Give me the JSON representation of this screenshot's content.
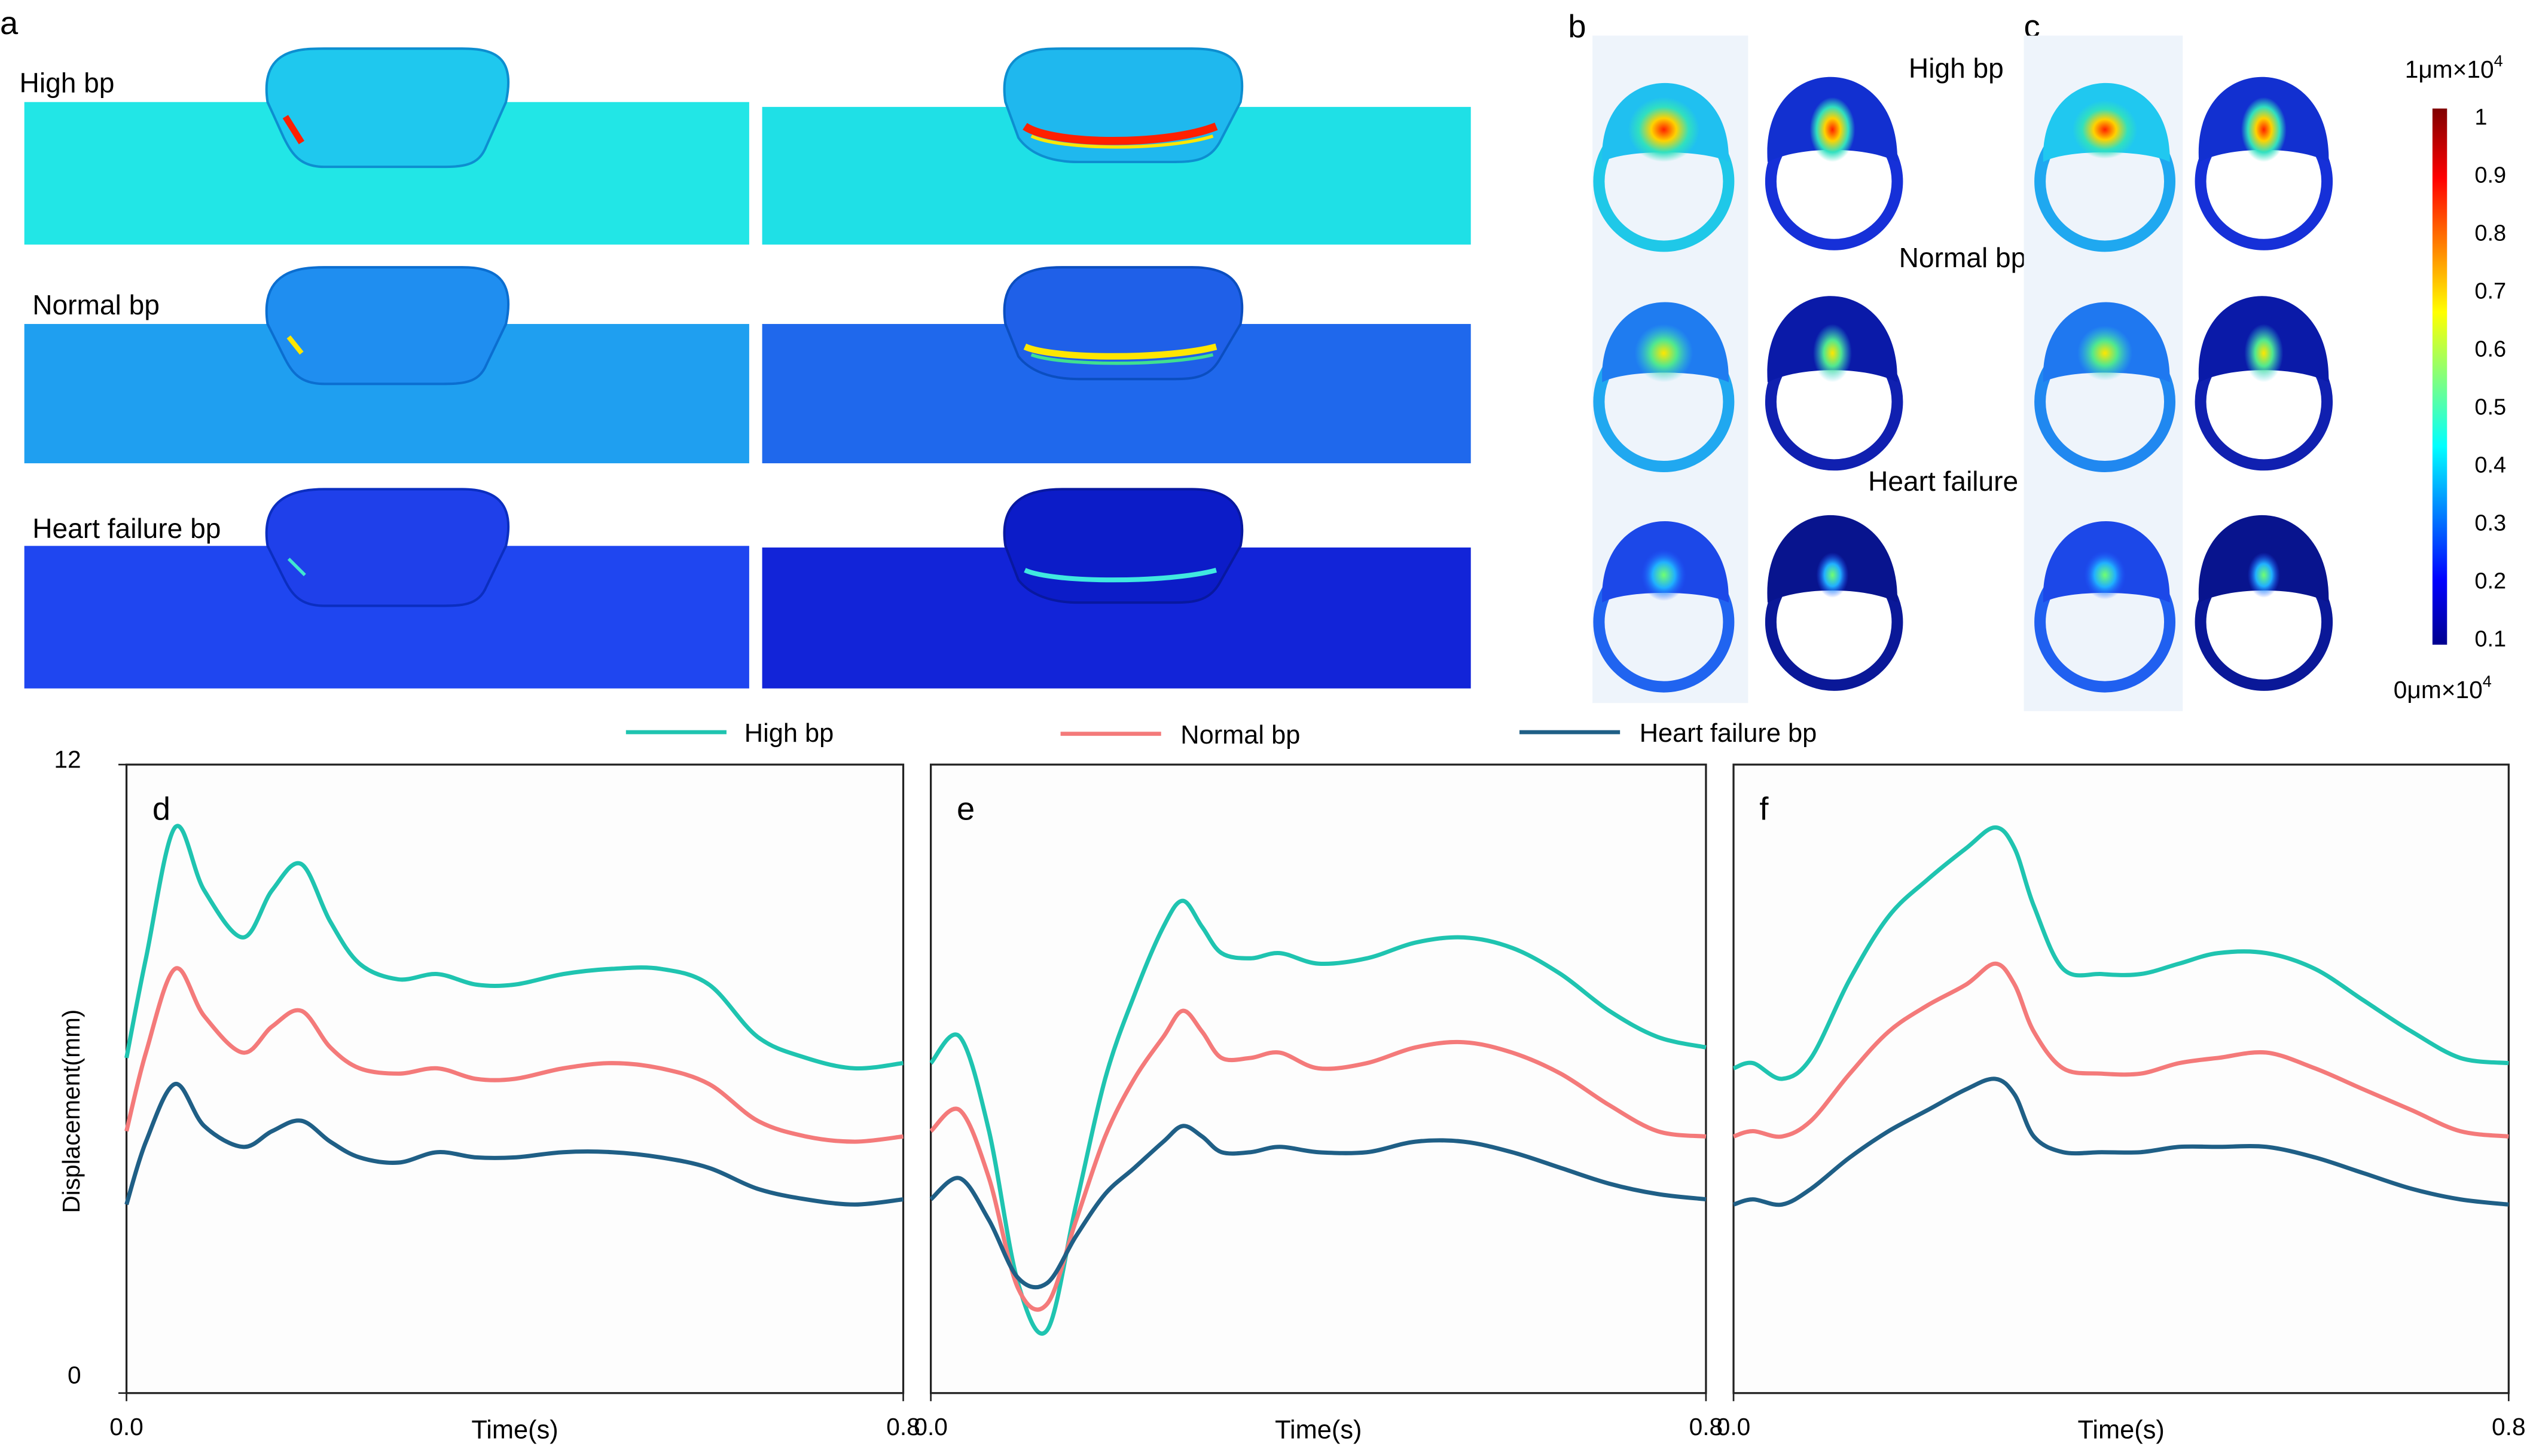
{
  "panel_labels": {
    "a": "a",
    "b": "b",
    "c": "c",
    "d": "d",
    "e": "e",
    "f": "f"
  },
  "bp_labels": {
    "high": "High bp",
    "normal": "Normal bp",
    "heart_failure": "Heart failure bp"
  },
  "colorbar": {
    "top_label": "1μm×10",
    "top_sup": "4",
    "bottom_label": "0μm×10",
    "bottom_sup": "4",
    "ticks": [
      "1",
      "0.9",
      "0.8",
      "0.7",
      "0.6",
      "0.5",
      "0.4",
      "0.3",
      "0.2",
      "0.1"
    ]
  },
  "colors": {
    "high": "#1fc4b0",
    "normal": "#f47a7a",
    "heart_failure": "#1f5f86"
  },
  "chart_data": [
    {
      "id": "d",
      "type": "line",
      "title": "d",
      "xlabel": "Time(s)",
      "ylabel": "Displacement(mm)",
      "xlim": [
        0,
        0.8
      ],
      "ylim": [
        0,
        12
      ],
      "x_ticks": [
        "0.0",
        "0.8"
      ],
      "y_ticks": [
        "0",
        "12"
      ],
      "legend": "top",
      "series": [
        {
          "name": "High bp",
          "color": "#1fc4b0",
          "x": [
            0,
            0.02,
            0.05,
            0.08,
            0.12,
            0.15,
            0.18,
            0.21,
            0.24,
            0.28,
            0.32,
            0.36,
            0.4,
            0.45,
            0.5,
            0.55,
            0.6,
            0.65,
            0.7,
            0.75,
            0.8
          ],
          "y": [
            6.4,
            8.3,
            10.8,
            9.6,
            8.7,
            9.6,
            10.1,
            9.0,
            8.2,
            7.9,
            8.0,
            7.8,
            7.8,
            8.0,
            8.1,
            8.1,
            7.8,
            6.8,
            6.4,
            6.2,
            6.3
          ]
        },
        {
          "name": "Normal bp",
          "color": "#f47a7a",
          "x": [
            0,
            0.02,
            0.05,
            0.08,
            0.12,
            0.15,
            0.18,
            0.21,
            0.24,
            0.28,
            0.32,
            0.36,
            0.4,
            0.45,
            0.5,
            0.55,
            0.6,
            0.65,
            0.7,
            0.75,
            0.8
          ],
          "y": [
            5.0,
            6.5,
            8.1,
            7.2,
            6.5,
            7.0,
            7.3,
            6.6,
            6.2,
            6.1,
            6.2,
            6.0,
            6.0,
            6.2,
            6.3,
            6.2,
            5.9,
            5.2,
            4.9,
            4.8,
            4.9
          ]
        },
        {
          "name": "Heart failure bp",
          "color": "#1f5f86",
          "x": [
            0,
            0.02,
            0.05,
            0.08,
            0.12,
            0.15,
            0.18,
            0.21,
            0.24,
            0.28,
            0.32,
            0.36,
            0.4,
            0.45,
            0.5,
            0.55,
            0.6,
            0.65,
            0.7,
            0.75,
            0.8
          ],
          "y": [
            3.6,
            4.8,
            5.9,
            5.1,
            4.7,
            5.0,
            5.2,
            4.8,
            4.5,
            4.4,
            4.6,
            4.5,
            4.5,
            4.6,
            4.6,
            4.5,
            4.3,
            3.9,
            3.7,
            3.6,
            3.7
          ]
        }
      ]
    },
    {
      "id": "e",
      "type": "line",
      "title": "e",
      "xlabel": "Time(s)",
      "ylabel": "",
      "xlim": [
        0,
        0.8
      ],
      "ylim": [
        0,
        12
      ],
      "x_ticks": [
        "0.0",
        "0.8"
      ],
      "y_ticks": [],
      "series": [
        {
          "name": "High bp",
          "color": "#1fc4b0",
          "x": [
            0,
            0.03,
            0.06,
            0.09,
            0.12,
            0.15,
            0.18,
            0.21,
            0.24,
            0.26,
            0.28,
            0.3,
            0.33,
            0.36,
            0.4,
            0.45,
            0.5,
            0.55,
            0.6,
            0.65,
            0.7,
            0.75,
            0.8
          ],
          "y": [
            6.3,
            6.8,
            5.0,
            2.1,
            1.2,
            3.6,
            6.0,
            7.6,
            8.9,
            9.4,
            8.9,
            8.4,
            8.3,
            8.4,
            8.2,
            8.3,
            8.6,
            8.7,
            8.5,
            8.0,
            7.3,
            6.8,
            6.6
          ]
        },
        {
          "name": "Normal bp",
          "color": "#f47a7a",
          "x": [
            0,
            0.03,
            0.06,
            0.09,
            0.12,
            0.15,
            0.18,
            0.21,
            0.24,
            0.26,
            0.28,
            0.3,
            0.33,
            0.36,
            0.4,
            0.45,
            0.5,
            0.55,
            0.6,
            0.65,
            0.7,
            0.75,
            0.8
          ],
          "y": [
            5.0,
            5.4,
            4.1,
            2.0,
            1.7,
            3.3,
            4.9,
            6.0,
            6.8,
            7.3,
            6.9,
            6.4,
            6.4,
            6.5,
            6.2,
            6.3,
            6.6,
            6.7,
            6.5,
            6.1,
            5.5,
            5.0,
            4.9
          ]
        },
        {
          "name": "Heart failure bp",
          "color": "#1f5f86",
          "x": [
            0,
            0.03,
            0.06,
            0.09,
            0.12,
            0.15,
            0.18,
            0.21,
            0.24,
            0.26,
            0.28,
            0.3,
            0.33,
            0.36,
            0.4,
            0.45,
            0.5,
            0.55,
            0.6,
            0.65,
            0.7,
            0.75,
            0.8
          ],
          "y": [
            3.7,
            4.1,
            3.3,
            2.2,
            2.1,
            3.0,
            3.8,
            4.3,
            4.8,
            5.1,
            4.9,
            4.6,
            4.6,
            4.7,
            4.6,
            4.6,
            4.8,
            4.8,
            4.6,
            4.3,
            4.0,
            3.8,
            3.7
          ]
        }
      ]
    },
    {
      "id": "f",
      "type": "line",
      "title": "f",
      "xlabel": "Time(s)",
      "ylabel": "",
      "xlim": [
        0,
        0.8
      ],
      "ylim": [
        0,
        12
      ],
      "x_ticks": [
        "0.0",
        "0.8"
      ],
      "y_ticks": [],
      "series": [
        {
          "name": "High bp",
          "color": "#1fc4b0",
          "x": [
            0,
            0.02,
            0.05,
            0.08,
            0.12,
            0.16,
            0.2,
            0.24,
            0.27,
            0.29,
            0.31,
            0.34,
            0.38,
            0.42,
            0.46,
            0.5,
            0.55,
            0.6,
            0.65,
            0.7,
            0.75,
            0.8
          ],
          "y": [
            6.2,
            6.3,
            6.0,
            6.4,
            7.9,
            9.1,
            9.8,
            10.4,
            10.8,
            10.4,
            9.3,
            8.1,
            8.0,
            8.0,
            8.2,
            8.4,
            8.4,
            8.1,
            7.5,
            6.9,
            6.4,
            6.3
          ]
        },
        {
          "name": "Normal bp",
          "color": "#f47a7a",
          "x": [
            0,
            0.02,
            0.05,
            0.08,
            0.12,
            0.16,
            0.2,
            0.24,
            0.27,
            0.29,
            0.31,
            0.34,
            0.38,
            0.42,
            0.46,
            0.5,
            0.55,
            0.6,
            0.65,
            0.7,
            0.75,
            0.8
          ],
          "y": [
            4.9,
            5.0,
            4.9,
            5.2,
            6.1,
            6.9,
            7.4,
            7.8,
            8.2,
            7.8,
            6.9,
            6.2,
            6.1,
            6.1,
            6.3,
            6.4,
            6.5,
            6.2,
            5.8,
            5.4,
            5.0,
            4.9
          ]
        },
        {
          "name": "Heart failure bp",
          "color": "#1f5f86",
          "x": [
            0,
            0.02,
            0.05,
            0.08,
            0.12,
            0.16,
            0.2,
            0.24,
            0.27,
            0.29,
            0.31,
            0.34,
            0.38,
            0.42,
            0.46,
            0.5,
            0.55,
            0.6,
            0.65,
            0.7,
            0.75,
            0.8
          ],
          "y": [
            3.6,
            3.7,
            3.6,
            3.9,
            4.5,
            5.0,
            5.4,
            5.8,
            6.0,
            5.7,
            4.9,
            4.6,
            4.6,
            4.6,
            4.7,
            4.7,
            4.7,
            4.5,
            4.2,
            3.9,
            3.7,
            3.6
          ]
        }
      ]
    }
  ]
}
